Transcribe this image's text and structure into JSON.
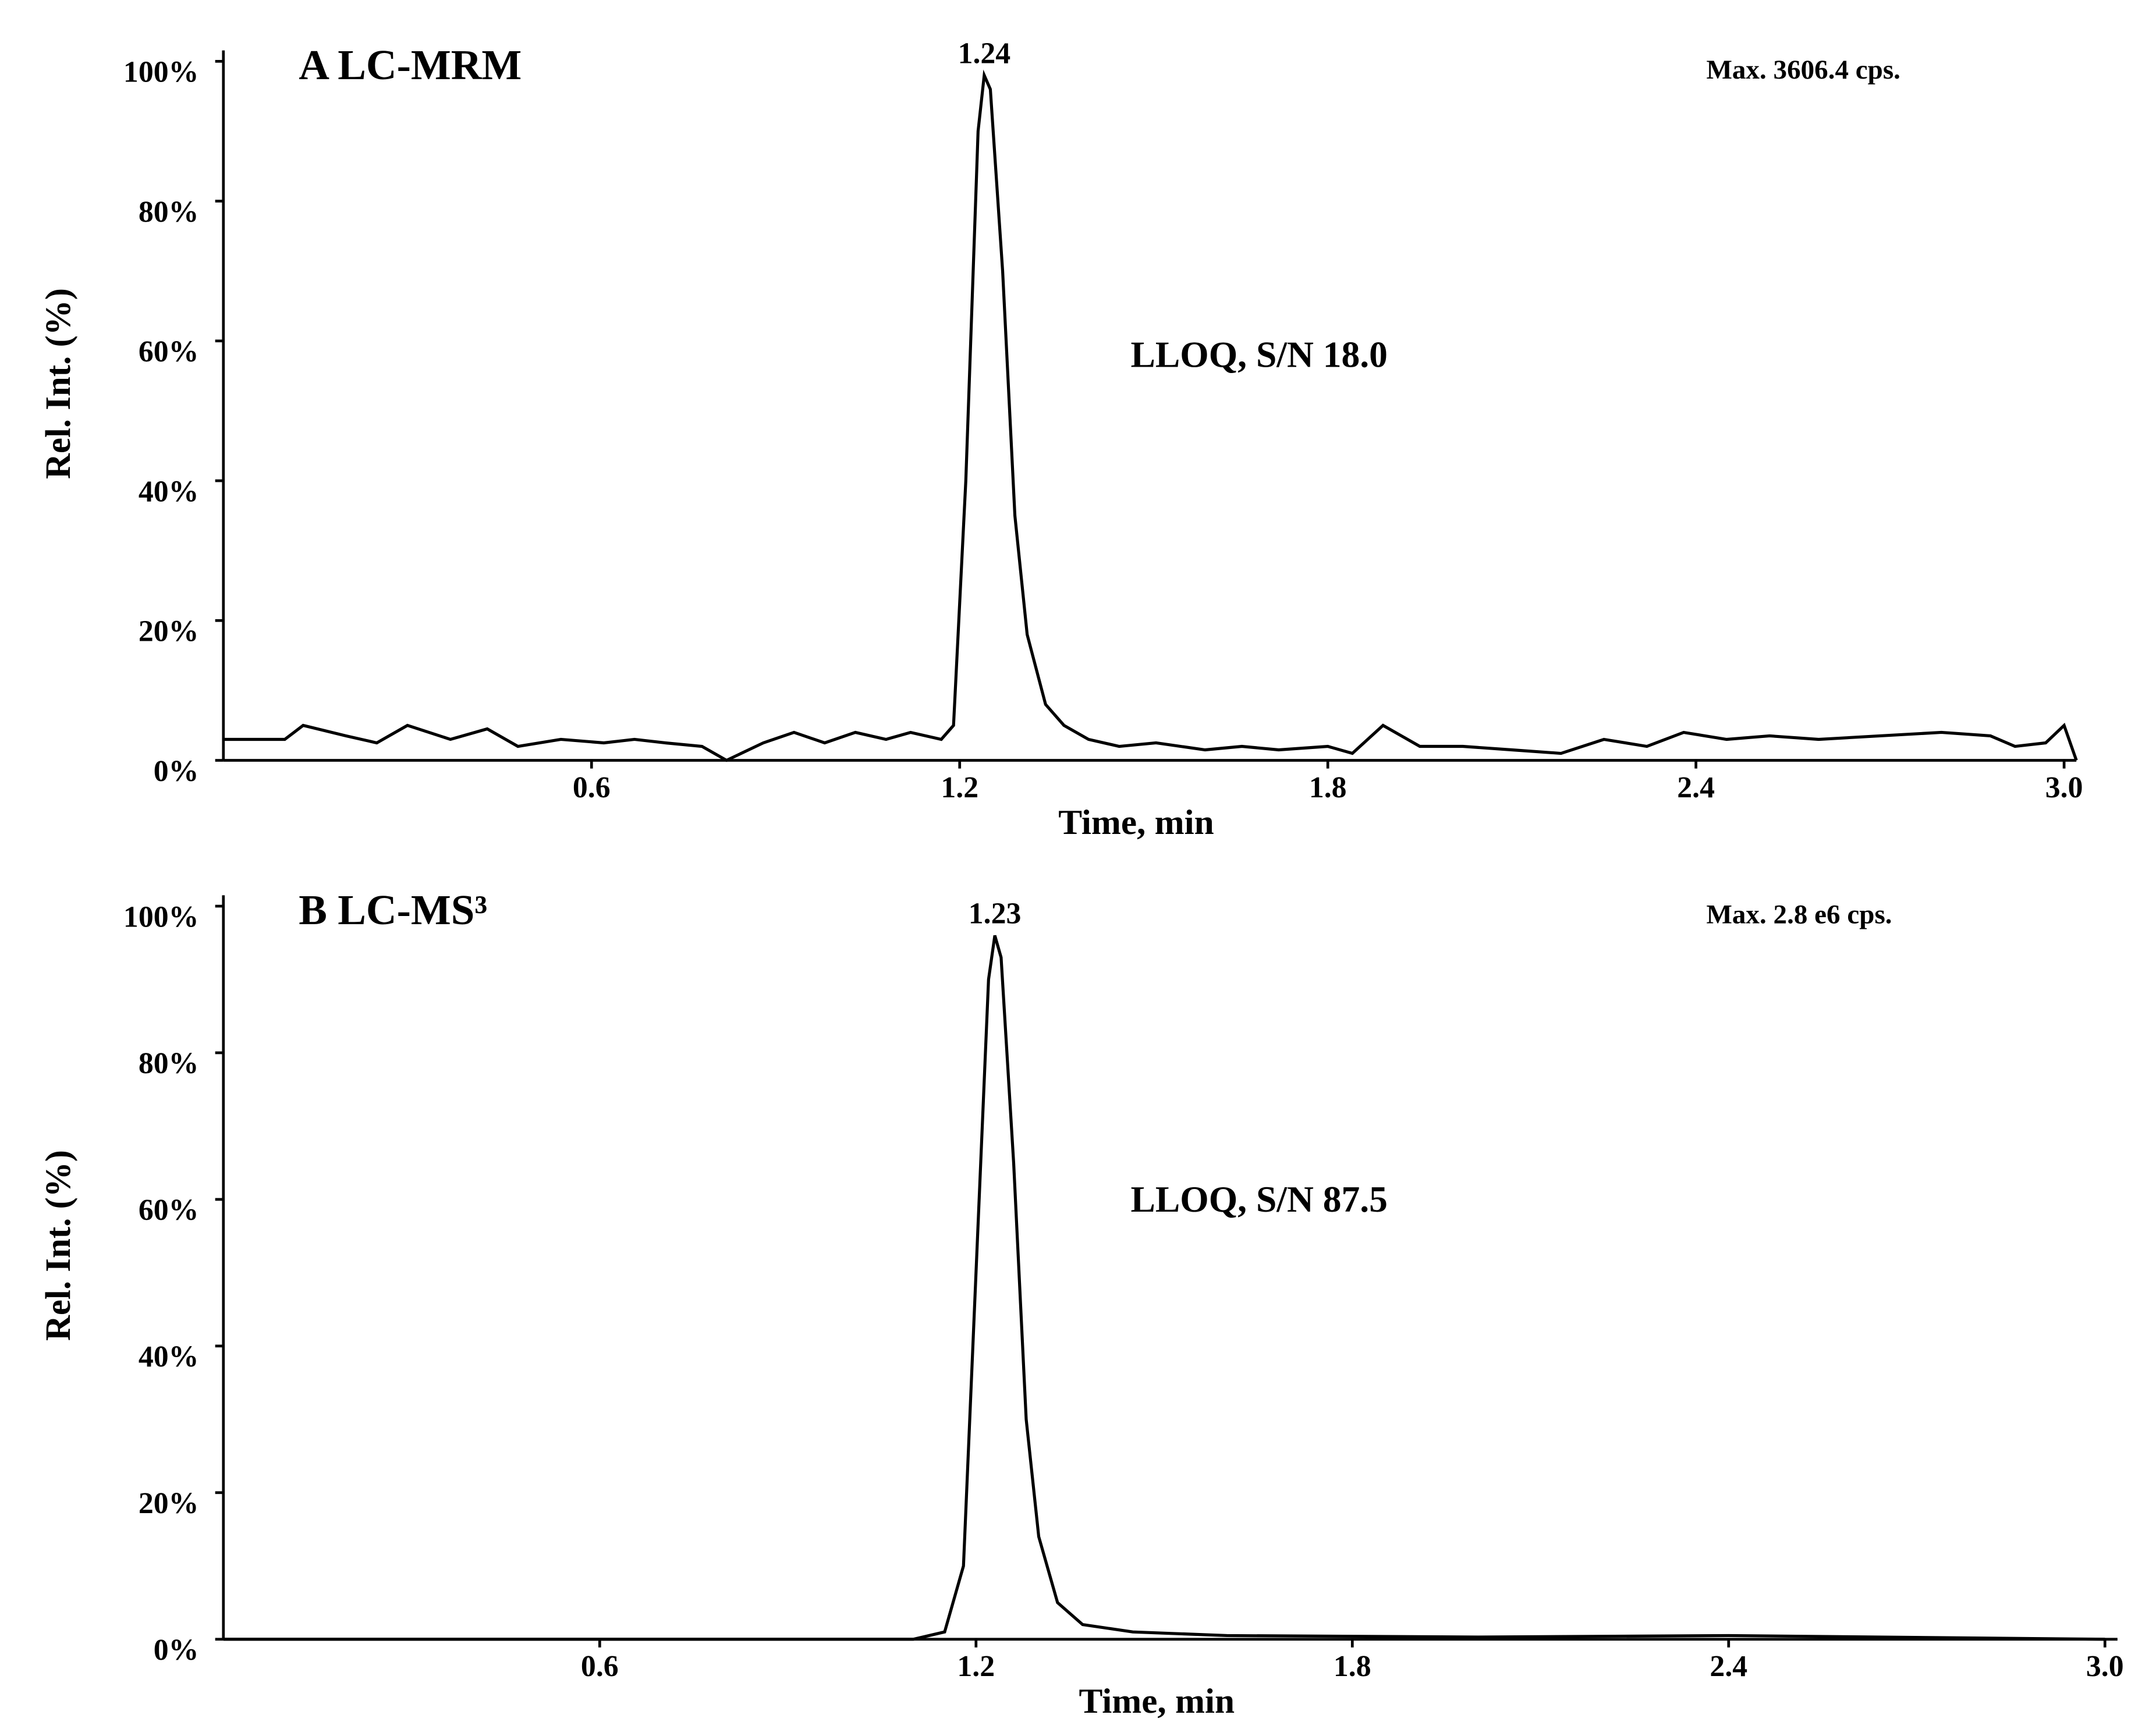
{
  "chart_data": [
    {
      "type": "line",
      "title": "A  LC-MRM",
      "subtitle": "Max. 3606.4 cps.",
      "annotation": "LLOQ, S/N  18.0",
      "peak_label": "1.24",
      "x_label": "Time, min",
      "y_label": "Rel. Int. (%)",
      "color": "#000000",
      "x": [
        0,
        0.1,
        0.13,
        0.2,
        0.25,
        0.3,
        0.37,
        0.43,
        0.48,
        0.55,
        0.62,
        0.67,
        0.72,
        0.78,
        0.82,
        0.88,
        0.93,
        0.98,
        1.03,
        1.08,
        1.12,
        1.17,
        1.19,
        1.21,
        1.23,
        1.24,
        1.25,
        1.27,
        1.29,
        1.31,
        1.34,
        1.37,
        1.41,
        1.46,
        1.52,
        1.6,
        1.66,
        1.72,
        1.8,
        1.84,
        1.89,
        1.95,
        2.02,
        2.1,
        2.18,
        2.25,
        2.32,
        2.38,
        2.45,
        2.52,
        2.6,
        2.7,
        2.8,
        2.88,
        2.92,
        2.97,
        3.0,
        3.02
      ],
      "values": [
        3,
        3,
        5,
        3.5,
        2.5,
        5,
        3,
        4.5,
        2,
        3,
        2.5,
        3,
        2.5,
        2,
        0,
        2.5,
        4,
        2.5,
        4,
        3,
        4,
        3,
        5,
        40,
        90,
        98,
        96,
        70,
        35,
        18,
        8,
        5,
        3,
        2,
        2.5,
        1.5,
        2,
        1.5,
        2,
        1,
        5,
        2,
        2,
        1.5,
        1,
        3,
        2,
        4,
        3,
        3.5,
        3,
        3.5,
        4,
        3.5,
        2,
        2.5,
        5,
        0
      ],
      "xlim": [
        0,
        3.02
      ],
      "ylim": [
        0,
        100
      ],
      "xticks": [
        0.6,
        1.2,
        1.8,
        2.4,
        {
          "value": 3,
          "label": "3.0"
        }
      ],
      "yticks": [
        {
          "value": 0,
          "label": "0%"
        },
        {
          "value": 20,
          "label": "20%"
        },
        {
          "value": 40,
          "label": "40%"
        },
        {
          "value": 60,
          "label": "60%"
        },
        {
          "value": 80,
          "label": "80%"
        },
        {
          "value": 100,
          "label": "100%"
        }
      ]
    },
    {
      "type": "line",
      "title": "B  LC-MS³",
      "subtitle": "Max. 2.8 e6 cps.",
      "annotation": "LLOQ, S/N  87.5",
      "peak_label": "1.23",
      "x_label": "Time, min",
      "y_label": "Rel. Int. (%)",
      "color": "#000000",
      "x": [
        0,
        1.1,
        1.15,
        1.18,
        1.2,
        1.22,
        1.23,
        1.24,
        1.26,
        1.28,
        1.3,
        1.33,
        1.37,
        1.45,
        1.6,
        2.0,
        2.4,
        3.0
      ],
      "values": [
        0,
        0,
        1,
        10,
        50,
        90,
        96,
        93,
        65,
        30,
        14,
        5,
        2,
        1,
        0.5,
        0.3,
        0.5,
        0
      ],
      "xlim": [
        0,
        3.02
      ],
      "ylim": [
        0,
        100
      ],
      "xticks": [
        0.6,
        1.2,
        1.8,
        2.4,
        {
          "value": 3,
          "label": "3.0"
        }
      ],
      "yticks": [
        {
          "value": 0,
          "label": "0%"
        },
        {
          "value": 20,
          "label": "20%"
        },
        {
          "value": 40,
          "label": "40%"
        },
        {
          "value": 60,
          "label": "60%"
        },
        {
          "value": 80,
          "label": "80%"
        },
        {
          "value": 100,
          "label": "100%"
        }
      ]
    }
  ]
}
